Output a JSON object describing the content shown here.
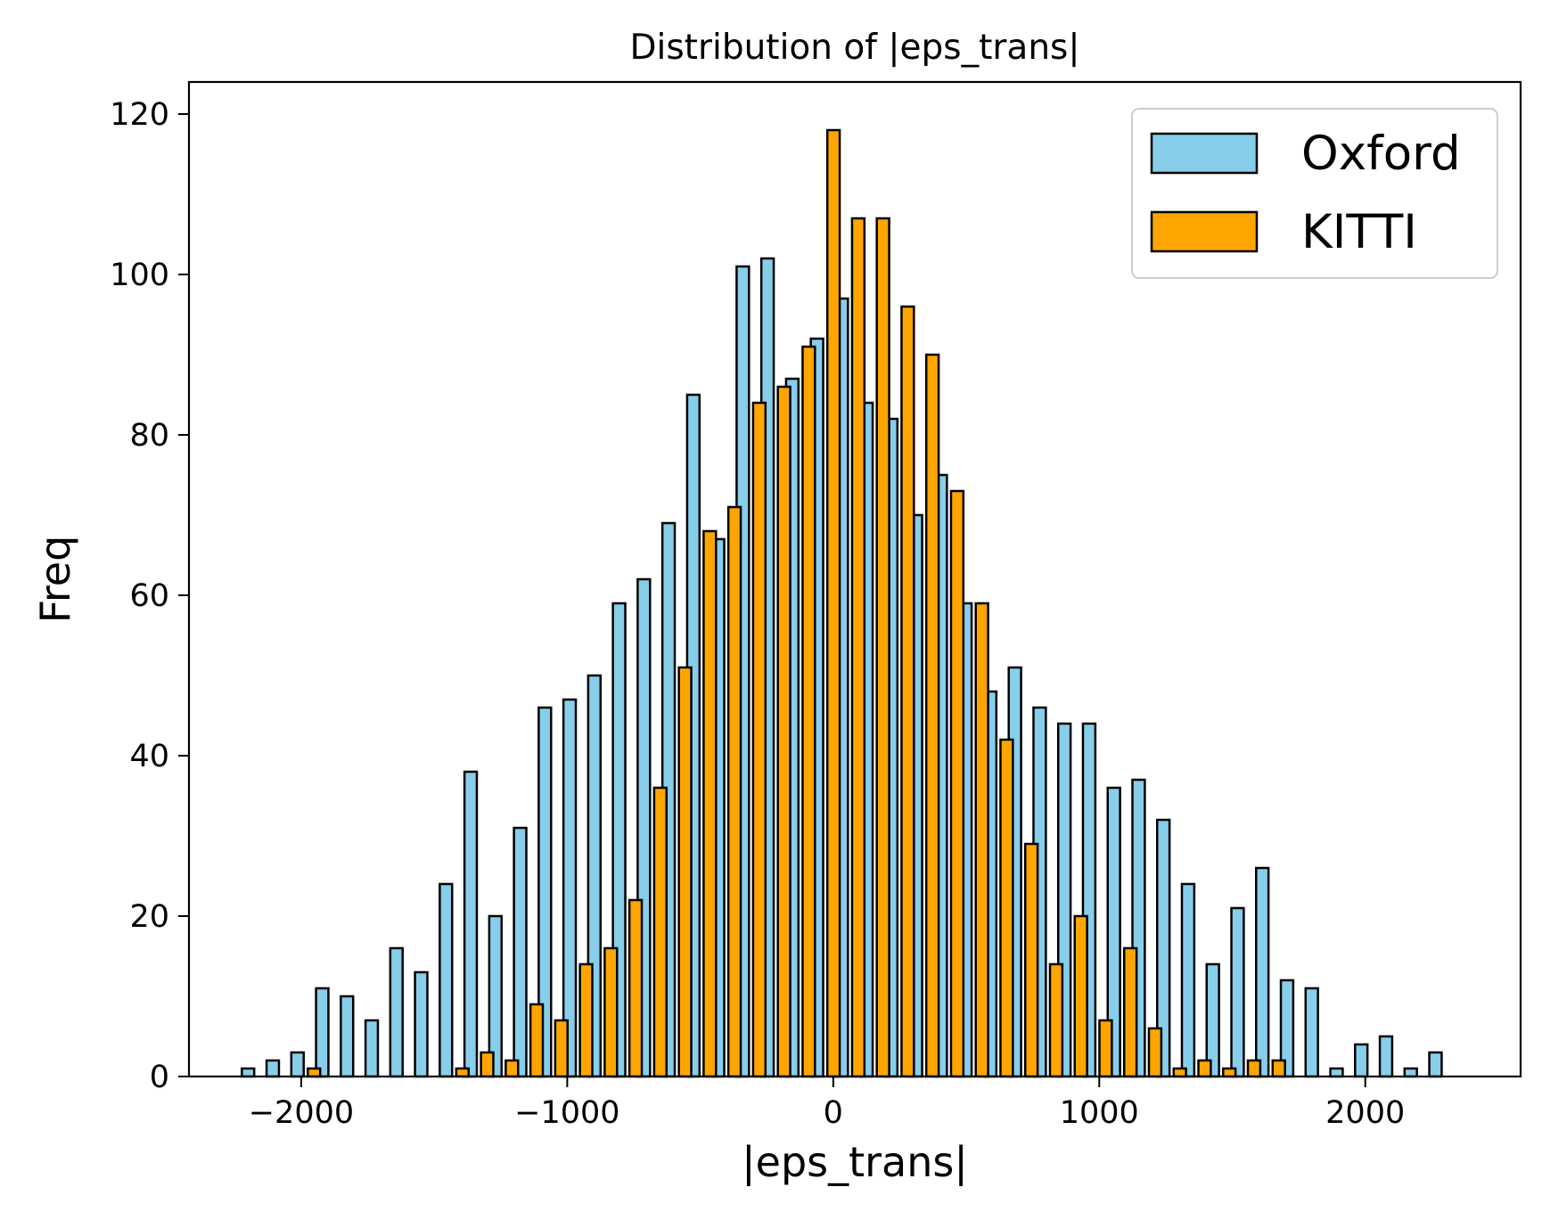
{
  "chart_data": {
    "type": "bar",
    "title": "Distribution of |eps_trans|",
    "xlabel": "|eps_trans|",
    "ylabel": "Freq",
    "xlim": [
      -2422,
      2584
    ],
    "ylim": [
      0,
      124
    ],
    "xticks": [
      -2000,
      -1000,
      0,
      1000,
      2000
    ],
    "xtick_labels": [
      "−2000",
      "−1000",
      "0",
      "1000",
      "2000"
    ],
    "yticks": [
      0,
      20,
      40,
      60,
      80,
      100,
      120
    ],
    "ytick_labels": [
      "0",
      "20",
      "40",
      "60",
      "80",
      "100",
      "120"
    ],
    "grid": false,
    "legend_position": "top-right",
    "bin_width": 93,
    "series": [
      {
        "name": "Oxford",
        "color": "#87CEEB",
        "x": [
          -2200,
          -2107,
          -2014,
          -1921,
          -1828,
          -1735,
          -1642,
          -1549,
          -1456,
          -1363,
          -1270,
          -1177,
          -1084,
          -991,
          -898,
          -805,
          -712,
          -619,
          -526,
          -433,
          -340,
          -247,
          -154,
          -61,
          32,
          125,
          218,
          311,
          404,
          497,
          590,
          683,
          776,
          869,
          962,
          1055,
          1148,
          1241,
          1334,
          1427,
          1520,
          1613,
          1706,
          1799,
          1892,
          1985,
          2078,
          2171,
          2264
        ],
        "values": [
          1,
          2,
          3,
          11,
          10,
          7,
          16,
          13,
          24,
          38,
          20,
          31,
          46,
          47,
          50,
          59,
          62,
          69,
          85,
          67,
          101,
          102,
          87,
          92,
          97,
          84,
          82,
          70,
          75,
          59,
          48,
          51,
          46,
          44,
          44,
          36,
          37,
          32,
          24,
          14,
          21,
          26,
          12,
          11,
          1,
          4,
          5,
          1,
          3
        ]
      },
      {
        "name": "KITTI",
        "color": "#FFA500",
        "x": [
          -2138,
          -2045,
          -1952,
          -1859,
          -1766,
          -1673,
          -1580,
          -1487,
          -1394,
          -1301,
          -1208,
          -1115,
          -1022,
          -929,
          -836,
          -743,
          -650,
          -557,
          -464,
          -371,
          -278,
          -185,
          -92,
          1,
          94,
          187,
          280,
          373,
          466,
          559,
          652,
          745,
          838,
          931,
          1024,
          1117,
          1210,
          1303,
          1396,
          1489,
          1582,
          1675,
          1768,
          1861,
          1954,
          2047,
          2140,
          2233,
          2326
        ],
        "values": [
          0,
          0,
          1,
          0,
          0,
          0,
          0,
          0,
          1,
          3,
          2,
          9,
          7,
          14,
          16,
          22,
          36,
          51,
          68,
          71,
          84,
          86,
          91,
          118,
          107,
          107,
          96,
          90,
          73,
          59,
          42,
          29,
          14,
          20,
          7,
          16,
          6,
          1,
          2,
          1,
          2,
          2,
          0,
          0,
          0,
          0,
          0,
          0,
          0
        ]
      }
    ]
  }
}
